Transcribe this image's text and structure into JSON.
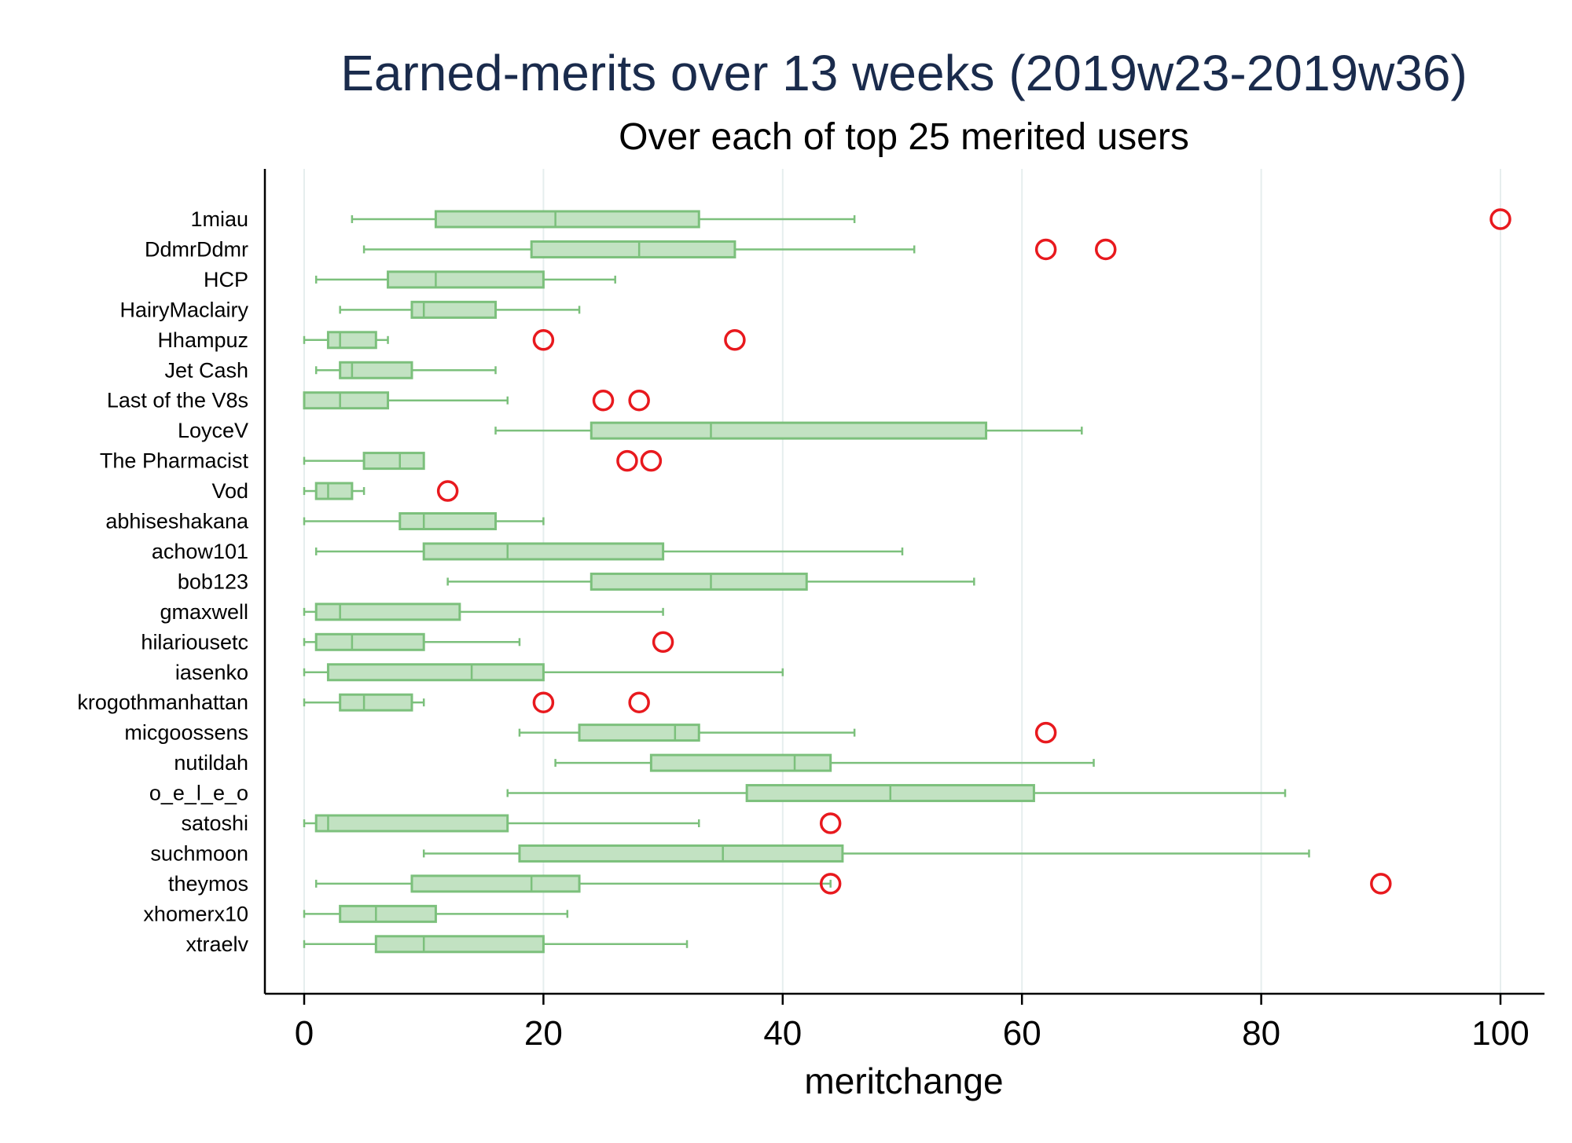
{
  "chart_data": {
    "type": "boxplot",
    "orientation": "horizontal",
    "title": "Earned-merits over 13 weeks (2019w23-2019w36)",
    "subtitle": "Over each of top 25 merited users",
    "xlabel": "meritchange",
    "xlim": [
      0,
      100
    ],
    "xticks": [
      0,
      20,
      40,
      60,
      80,
      100
    ],
    "grid": true,
    "colors": {
      "box_fill": "#c2e2c2",
      "box_stroke": "#7cc07c",
      "outlier": "#e8191e",
      "grid": "#e6eeee",
      "title": "#1a2b4c"
    },
    "series": [
      {
        "name": "1miau",
        "whisker_low": 4,
        "q1": 11,
        "median": 21,
        "q3": 33,
        "whisker_high": 46,
        "outliers": [
          100
        ]
      },
      {
        "name": "DdmrDdmr",
        "whisker_low": 5,
        "q1": 19,
        "median": 28,
        "q3": 36,
        "whisker_high": 51,
        "outliers": [
          62,
          67
        ]
      },
      {
        "name": "HCP",
        "whisker_low": 1,
        "q1": 7,
        "median": 11,
        "q3": 20,
        "whisker_high": 26,
        "outliers": []
      },
      {
        "name": "HairyMaclairy",
        "whisker_low": 3,
        "q1": 9,
        "median": 10,
        "q3": 16,
        "whisker_high": 23,
        "outliers": []
      },
      {
        "name": "Hhampuz",
        "whisker_low": 0,
        "q1": 2,
        "median": 3,
        "q3": 6,
        "whisker_high": 7,
        "outliers": [
          20,
          36
        ]
      },
      {
        "name": "Jet Cash",
        "whisker_low": 1,
        "q1": 3,
        "median": 4,
        "q3": 9,
        "whisker_high": 16,
        "outliers": []
      },
      {
        "name": "Last of the V8s",
        "whisker_low": 0,
        "q1": 0,
        "median": 3,
        "q3": 7,
        "whisker_high": 17,
        "outliers": [
          25,
          28
        ]
      },
      {
        "name": "LoyceV",
        "whisker_low": 16,
        "q1": 24,
        "median": 34,
        "q3": 57,
        "whisker_high": 65,
        "outliers": []
      },
      {
        "name": "The Pharmacist",
        "whisker_low": 0,
        "q1": 5,
        "median": 8,
        "q3": 10,
        "whisker_high": 10,
        "outliers": [
          27,
          29
        ]
      },
      {
        "name": "Vod",
        "whisker_low": 0,
        "q1": 1,
        "median": 2,
        "q3": 4,
        "whisker_high": 5,
        "outliers": [
          12
        ]
      },
      {
        "name": "abhiseshakana",
        "whisker_low": 0,
        "q1": 8,
        "median": 10,
        "q3": 16,
        "whisker_high": 20,
        "outliers": []
      },
      {
        "name": "achow101",
        "whisker_low": 1,
        "q1": 10,
        "median": 17,
        "q3": 30,
        "whisker_high": 50,
        "outliers": []
      },
      {
        "name": "bob123",
        "whisker_low": 12,
        "q1": 24,
        "median": 34,
        "q3": 42,
        "whisker_high": 56,
        "outliers": []
      },
      {
        "name": "gmaxwell",
        "whisker_low": 0,
        "q1": 1,
        "median": 3,
        "q3": 13,
        "whisker_high": 30,
        "outliers": []
      },
      {
        "name": "hilariousetc",
        "whisker_low": 0,
        "q1": 1,
        "median": 4,
        "q3": 10,
        "whisker_high": 18,
        "outliers": [
          30
        ]
      },
      {
        "name": "iasenko",
        "whisker_low": 0,
        "q1": 2,
        "median": 14,
        "q3": 20,
        "whisker_high": 40,
        "outliers": []
      },
      {
        "name": "krogothmanhattan",
        "whisker_low": 0,
        "q1": 3,
        "median": 5,
        "q3": 9,
        "whisker_high": 10,
        "outliers": [
          20,
          28
        ]
      },
      {
        "name": "micgoossens",
        "whisker_low": 18,
        "q1": 23,
        "median": 31,
        "q3": 33,
        "whisker_high": 46,
        "outliers": [
          62
        ]
      },
      {
        "name": "nutildah",
        "whisker_low": 21,
        "q1": 29,
        "median": 41,
        "q3": 44,
        "whisker_high": 66,
        "outliers": []
      },
      {
        "name": "o_e_l_e_o",
        "whisker_low": 17,
        "q1": 37,
        "median": 49,
        "q3": 61,
        "whisker_high": 82,
        "outliers": []
      },
      {
        "name": "satoshi",
        "whisker_low": 0,
        "q1": 1,
        "median": 2,
        "q3": 17,
        "whisker_high": 33,
        "outliers": [
          44
        ]
      },
      {
        "name": "suchmoon",
        "whisker_low": 10,
        "q1": 18,
        "median": 35,
        "q3": 45,
        "whisker_high": 84,
        "outliers": []
      },
      {
        "name": "theymos",
        "whisker_low": 1,
        "q1": 9,
        "median": 19,
        "q3": 23,
        "whisker_high": 44,
        "outliers": [
          44,
          90
        ]
      },
      {
        "name": "xhomerx10",
        "whisker_low": 0,
        "q1": 3,
        "median": 6,
        "q3": 11,
        "whisker_high": 22,
        "outliers": []
      },
      {
        "name": "xtraelv",
        "whisker_low": 0,
        "q1": 6,
        "median": 10,
        "q3": 20,
        "whisker_high": 32,
        "outliers": []
      }
    ]
  }
}
